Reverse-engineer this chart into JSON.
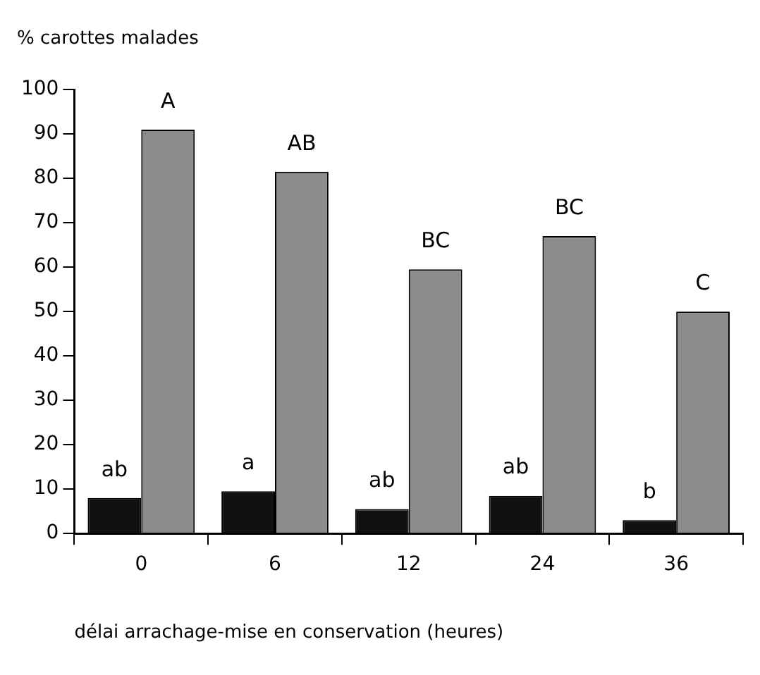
{
  "chart_data": {
    "type": "bar",
    "ylabel": "% carottes malades",
    "xlabel": "délai arrachage-mise en conservation (heures)",
    "categories": [
      "0",
      "6",
      "12",
      "24",
      "36"
    ],
    "series": [
      {
        "color": "#111111",
        "values": [
          8,
          9.5,
          5.5,
          8.5,
          3
        ]
      },
      {
        "color": "#8c8c8c",
        "values": [
          91,
          81.5,
          59.5,
          67,
          50
        ]
      }
    ],
    "ylim": [
      0,
      100
    ],
    "yticks": [
      0,
      10,
      20,
      30,
      40,
      50,
      60,
      70,
      80,
      90,
      100
    ],
    "grid": false,
    "legend": false,
    "annotations": [
      {
        "text": "ab",
        "x": "0",
        "y": 8
      },
      {
        "text": "A",
        "x": "0",
        "y": 91
      },
      {
        "text": "a",
        "x": "6",
        "y": 9.5
      },
      {
        "text": "AB",
        "x": "6",
        "y": 81.5
      },
      {
        "text": "ab",
        "x": "12",
        "y": 5.5
      },
      {
        "text": "BC",
        "x": "12",
        "y": 59.5
      },
      {
        "text": "ab",
        "x": "24",
        "y": 8.5
      },
      {
        "text": "BC",
        "x": "24",
        "y": 67
      },
      {
        "text": "b",
        "x": "36",
        "y": 3
      },
      {
        "text": "C",
        "x": "36",
        "y": 50
      }
    ]
  }
}
